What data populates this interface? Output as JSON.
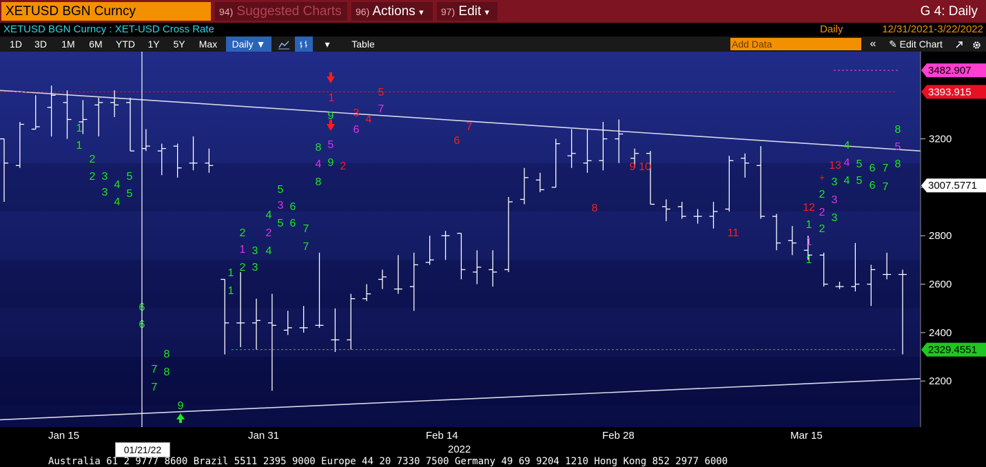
{
  "topbar": {
    "ticker": "XETUSD BGN Curncy",
    "suggested_num": "94)",
    "suggested_label": "Suggested Charts",
    "actions_num": "96)",
    "actions_label": "Actions",
    "edit_num": "97)",
    "edit_label": "Edit",
    "dropdown_glyph": "▾",
    "right_title": "G 4: Daily"
  },
  "infobar": {
    "security": "XETUSD BGN Curncy : XET-USD Cross Rate",
    "frequency": "Daily",
    "date_range": "12/31/2021-3/22/2022"
  },
  "toolbar": {
    "periods": [
      "1D",
      "3D",
      "1M",
      "6M",
      "YTD",
      "1Y",
      "5Y",
      "Max"
    ],
    "frequency_dropdown": "Daily ▼",
    "line_icon": "line-chart-icon",
    "bar_icon": "bar-chart-icon",
    "more": "▾",
    "table": "Table",
    "add_data_placeholder": "Add Data",
    "collapse": "«",
    "edit_chart": "✎ Edit Chart",
    "maximize_icon": "expand-icon",
    "settings_icon": "gear-icon"
  },
  "xaxis": {
    "labels": [
      "Jan 15",
      "Jan 31",
      "Feb 14",
      "Feb 28",
      "Mar 15"
    ],
    "cursor_date": "01/21/22",
    "year": "2022"
  },
  "ticker_tape": "Australia 61 2 9777 8600  Brazil 5511 2395 9000  Europe 44 20 7330 7500  Germany 49 69 9204 1210  Hong Kong 852 2977 6000",
  "chart_data": {
    "type": "bar",
    "title": "XETUSD BGN Curncy",
    "frequency": "Daily",
    "yaxis_ticks": [
      2200,
      2400,
      2600,
      2800,
      3000,
      3200
    ],
    "ylim": [
      2010,
      3560
    ],
    "price_tags": [
      {
        "label": "3482.907",
        "value": 3482.907,
        "color": "#ff3fd0",
        "text_color": "#000"
      },
      {
        "label": "3393.915",
        "value": 3393.915,
        "color": "#e81123",
        "text_color": "#fff"
      },
      {
        "label": "3007.5771",
        "value": 3007.5771,
        "color": "#ffffff",
        "text_color": "#000"
      },
      {
        "label": "2329.4551",
        "value": 2329.4551,
        "color": "#1ec81e",
        "text_color": "#000"
      }
    ],
    "colors": {
      "background_top": "#1e2a82",
      "background_bottom": "#0a0e46",
      "bars": "#ffffff",
      "count_green": "#1ee81e",
      "count_red": "#ff1c1c",
      "count_magenta": "#e033e0",
      "count_pink": "#ff4a7a"
    },
    "bars": [
      {
        "d": "12/31/2021",
        "o": 3200,
        "h": 3200,
        "l": 2940,
        "c": 3100
      },
      {
        "d": "01/03/2022",
        "o": 3090,
        "h": 3270,
        "l": 3080,
        "c": 3260
      },
      {
        "d": "01/04/2022",
        "o": 3240,
        "h": 3380,
        "l": 3240,
        "c": 3250
      },
      {
        "d": "01/05/2022",
        "o": 3330,
        "h": 3420,
        "l": 3210,
        "c": 3380
      },
      {
        "d": "01/06/2022",
        "o": 3350,
        "h": 3400,
        "l": 3200,
        "c": 3280
      },
      {
        "d": "01/07/2022",
        "o": 3270,
        "h": 3360,
        "l": 3220,
        "c": 3280
      },
      {
        "d": "01/10/2022",
        "o": 3340,
        "h": 3370,
        "l": 3210,
        "c": 3350
      },
      {
        "d": "01/11/2022",
        "o": 3350,
        "h": 3400,
        "l": 3290,
        "c": 3340
      },
      {
        "d": "01/12/2022",
        "o": 3350,
        "h": 3370,
        "l": 3150,
        "c": 3150
      },
      {
        "d": "01/13/2022",
        "o": 3160,
        "h": 3240,
        "l": 3150,
        "c": 3170
      },
      {
        "d": "01/14/2022",
        "o": 3150,
        "h": 3180,
        "l": 3050,
        "c": 3160
      },
      {
        "d": "01/17/2022",
        "o": 3170,
        "h": 3180,
        "l": 3040,
        "c": 3080
      },
      {
        "d": "01/18/2022",
        "o": 3100,
        "h": 3210,
        "l": 3070,
        "c": 3100
      },
      {
        "d": "01/19/2022",
        "o": 3100,
        "h": 3160,
        "l": 3060,
        "c": 3090
      },
      {
        "d": "01/20/2022",
        "o": 2620,
        "h": 2620,
        "l": 2310,
        "c": 2440
      },
      {
        "d": "01/21/2022",
        "o": 2440,
        "h": 2650,
        "l": 2340,
        "c": 2440
      },
      {
        "d": "01/24/2022",
        "o": 2440,
        "h": 2540,
        "l": 2330,
        "c": 2450
      },
      {
        "d": "01/25/2022",
        "o": 2440,
        "h": 2560,
        "l": 2160,
        "c": 2430
      },
      {
        "d": "01/26/2022",
        "o": 2410,
        "h": 2490,
        "l": 2390,
        "c": 2420
      },
      {
        "d": "01/27/2022",
        "o": 2420,
        "h": 2510,
        "l": 2400,
        "c": 2420
      },
      {
        "d": "01/28/2022",
        "o": 2430,
        "h": 2730,
        "l": 2420,
        "c": 2430
      },
      {
        "d": "01/31/2022",
        "o": 2370,
        "h": 2500,
        "l": 2320,
        "c": 2370
      },
      {
        "d": "02/01/2022",
        "o": 2370,
        "h": 2560,
        "l": 2330,
        "c": 2540
      },
      {
        "d": "02/02/2022",
        "o": 2540,
        "h": 2600,
        "l": 2530,
        "c": 2560
      },
      {
        "d": "02/03/2022",
        "o": 2620,
        "h": 2660,
        "l": 2580,
        "c": 2630
      },
      {
        "d": "02/04/2022",
        "o": 2580,
        "h": 2720,
        "l": 2560,
        "c": 2580
      },
      {
        "d": "02/07/2022",
        "o": 2590,
        "h": 2730,
        "l": 2490,
        "c": 2680
      },
      {
        "d": "02/08/2022",
        "o": 2690,
        "h": 2800,
        "l": 2680,
        "c": 2700
      },
      {
        "d": "02/09/2022",
        "o": 2800,
        "h": 2820,
        "l": 2700,
        "c": 2800
      },
      {
        "d": "02/10/2022",
        "o": 2810,
        "h": 2810,
        "l": 2620,
        "c": 2660
      },
      {
        "d": "02/11/2022",
        "o": 2650,
        "h": 2740,
        "l": 2600,
        "c": 2670
      },
      {
        "d": "02/14/2022",
        "o": 2660,
        "h": 2740,
        "l": 2590,
        "c": 2650
      },
      {
        "d": "02/15/2022",
        "o": 2660,
        "h": 2960,
        "l": 2650,
        "c": 2940
      },
      {
        "d": "02/16/2022",
        "o": 2950,
        "h": 3080,
        "l": 2930,
        "c": 3040
      },
      {
        "d": "02/17/2022",
        "o": 3030,
        "h": 3060,
        "l": 2980,
        "c": 2990
      },
      {
        "d": "02/18/2022",
        "o": 3000,
        "h": 3200,
        "l": 3000,
        "c": 3180
      },
      {
        "d": "02/21/2022",
        "o": 3130,
        "h": 3240,
        "l": 3080,
        "c": 3140
      },
      {
        "d": "02/22/2022",
        "o": 3100,
        "h": 3240,
        "l": 3060,
        "c": 3110
      },
      {
        "d": "02/23/2022",
        "o": 3110,
        "h": 3270,
        "l": 3070,
        "c": 3200
      },
      {
        "d": "02/24/2022",
        "o": 3200,
        "h": 3280,
        "l": 3100,
        "c": 3220
      },
      {
        "d": "02/25/2022",
        "o": 3120,
        "h": 3160,
        "l": 3080,
        "c": 3140
      },
      {
        "d": "02/28/2022",
        "o": 3140,
        "h": 3150,
        "l": 2930,
        "c": 2930
      },
      {
        "d": "03/01/2022",
        "o": 2920,
        "h": 2950,
        "l": 2860,
        "c": 2910
      },
      {
        "d": "03/02/2022",
        "o": 2920,
        "h": 2940,
        "l": 2870,
        "c": 2880
      },
      {
        "d": "03/03/2022",
        "o": 2880,
        "h": 2910,
        "l": 2850,
        "c": 2880
      },
      {
        "d": "03/04/2022",
        "o": 2880,
        "h": 2940,
        "l": 2830,
        "c": 2900
      },
      {
        "d": "03/07/2022",
        "o": 2910,
        "h": 3130,
        "l": 2900,
        "c": 3110
      },
      {
        "d": "03/08/2022",
        "o": 3120,
        "h": 3140,
        "l": 3040,
        "c": 3100
      },
      {
        "d": "03/09/2022",
        "o": 3090,
        "h": 3170,
        "l": 2870,
        "c": 2880
      },
      {
        "d": "03/10/2022",
        "o": 2880,
        "h": 2890,
        "l": 2740,
        "c": 2770
      },
      {
        "d": "03/11/2022",
        "o": 2780,
        "h": 2840,
        "l": 2720,
        "c": 2770
      },
      {
        "d": "03/14/2022",
        "o": 2740,
        "h": 2800,
        "l": 2700,
        "c": 2720
      },
      {
        "d": "03/15/2022",
        "o": 2720,
        "h": 2730,
        "l": 2590,
        "c": 2600
      },
      {
        "d": "03/16/2022",
        "o": 2590,
        "h": 2610,
        "l": 2580,
        "c": 2590
      },
      {
        "d": "03/17/2022",
        "o": 2590,
        "h": 2770,
        "l": 2570,
        "c": 2600
      },
      {
        "d": "03/18/2022",
        "o": 2600,
        "h": 2680,
        "l": 2510,
        "c": 2660
      },
      {
        "d": "03/21/2022",
        "o": 2640,
        "h": 2730,
        "l": 2620,
        "c": 2640
      },
      {
        "d": "03/22/2022",
        "o": 2640,
        "h": 2660,
        "l": 2310,
        "c": 2640
      }
    ],
    "trendlines": [
      {
        "name": "upper",
        "x1": 0,
        "y1": 3400,
        "x2": 1,
        "y2": 3150
      },
      {
        "name": "lower",
        "x1": 0,
        "y1": 2040,
        "x2": 1,
        "y2": 2210
      }
    ],
    "counts": [
      {
        "t": "1",
        "c": "g"
      },
      {
        "t": "2",
        "c": "g"
      },
      {
        "t": "3",
        "c": "g"
      },
      {
        "t": "4",
        "c": "g"
      },
      {
        "t": "5",
        "c": "g"
      },
      {
        "t": "6",
        "c": "g"
      },
      {
        "t": "7",
        "c": "g"
      },
      {
        "t": "8",
        "c": "g"
      },
      {
        "t": "9",
        "c": "g"
      },
      {
        "t": "1",
        "c": "r"
      },
      {
        "t": "2",
        "c": "r"
      },
      {
        "t": "3",
        "c": "r"
      },
      {
        "t": "4",
        "c": "r"
      },
      {
        "t": "5",
        "c": "r"
      },
      {
        "t": "6",
        "c": "r"
      },
      {
        "t": "7",
        "c": "r"
      },
      {
        "t": "8",
        "c": "r"
      },
      {
        "t": "9",
        "c": "r"
      },
      {
        "t": "10",
        "c": "r"
      },
      {
        "t": "11",
        "c": "r"
      },
      {
        "t": "12",
        "c": "r"
      },
      {
        "t": "13",
        "c": "r"
      },
      {
        "t": "1",
        "c": "m"
      },
      {
        "t": "2",
        "c": "m"
      },
      {
        "t": "3",
        "c": "m"
      },
      {
        "t": "4",
        "c": "m"
      },
      {
        "t": "5",
        "c": "m"
      },
      {
        "t": "6",
        "c": "m"
      },
      {
        "t": "7",
        "c": "m"
      }
    ]
  }
}
